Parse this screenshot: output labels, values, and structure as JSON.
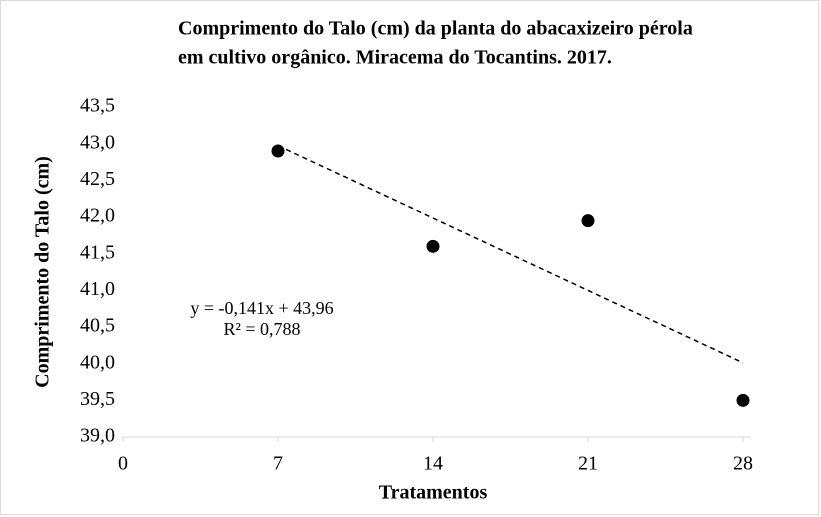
{
  "chart_data": {
    "type": "scatter",
    "title": [
      "Comprimento do Talo (cm) da planta do abacaxizeiro pérola",
      "em cultivo orgânico. Miracema do Tocantins. 2017."
    ],
    "x_label": "Tratamentos",
    "y_label": "Comprimento do Talo (cm)",
    "x": [
      7,
      14,
      21,
      28
    ],
    "values": [
      42.9,
      41.6,
      41.95,
      39.5
    ],
    "color": "#000000",
    "xlim": [
      0,
      28
    ],
    "xticks": [
      0,
      7,
      14,
      21,
      28
    ],
    "ylim": [
      39,
      43.5
    ],
    "yticks": [
      {
        "value": 39,
        "label": "39,0"
      },
      {
        "value": 39.5,
        "label": "39,5"
      },
      {
        "value": 40,
        "label": "40,0"
      },
      {
        "value": 40.5,
        "label": "40,5"
      },
      {
        "value": 41,
        "label": "41,0"
      },
      {
        "value": 41.5,
        "label": "41,5"
      },
      {
        "value": 42,
        "label": "42,0"
      },
      {
        "value": 42.5,
        "label": "42,5"
      },
      {
        "value": 43,
        "label": "43,0"
      },
      {
        "value": 43.5,
        "label": "43,5"
      }
    ],
    "trendline": {
      "slope": -0.141,
      "intercept": 43.96,
      "equation": "y = -0,141x + 43,96",
      "r2_label": "R² = 0,788"
    }
  }
}
